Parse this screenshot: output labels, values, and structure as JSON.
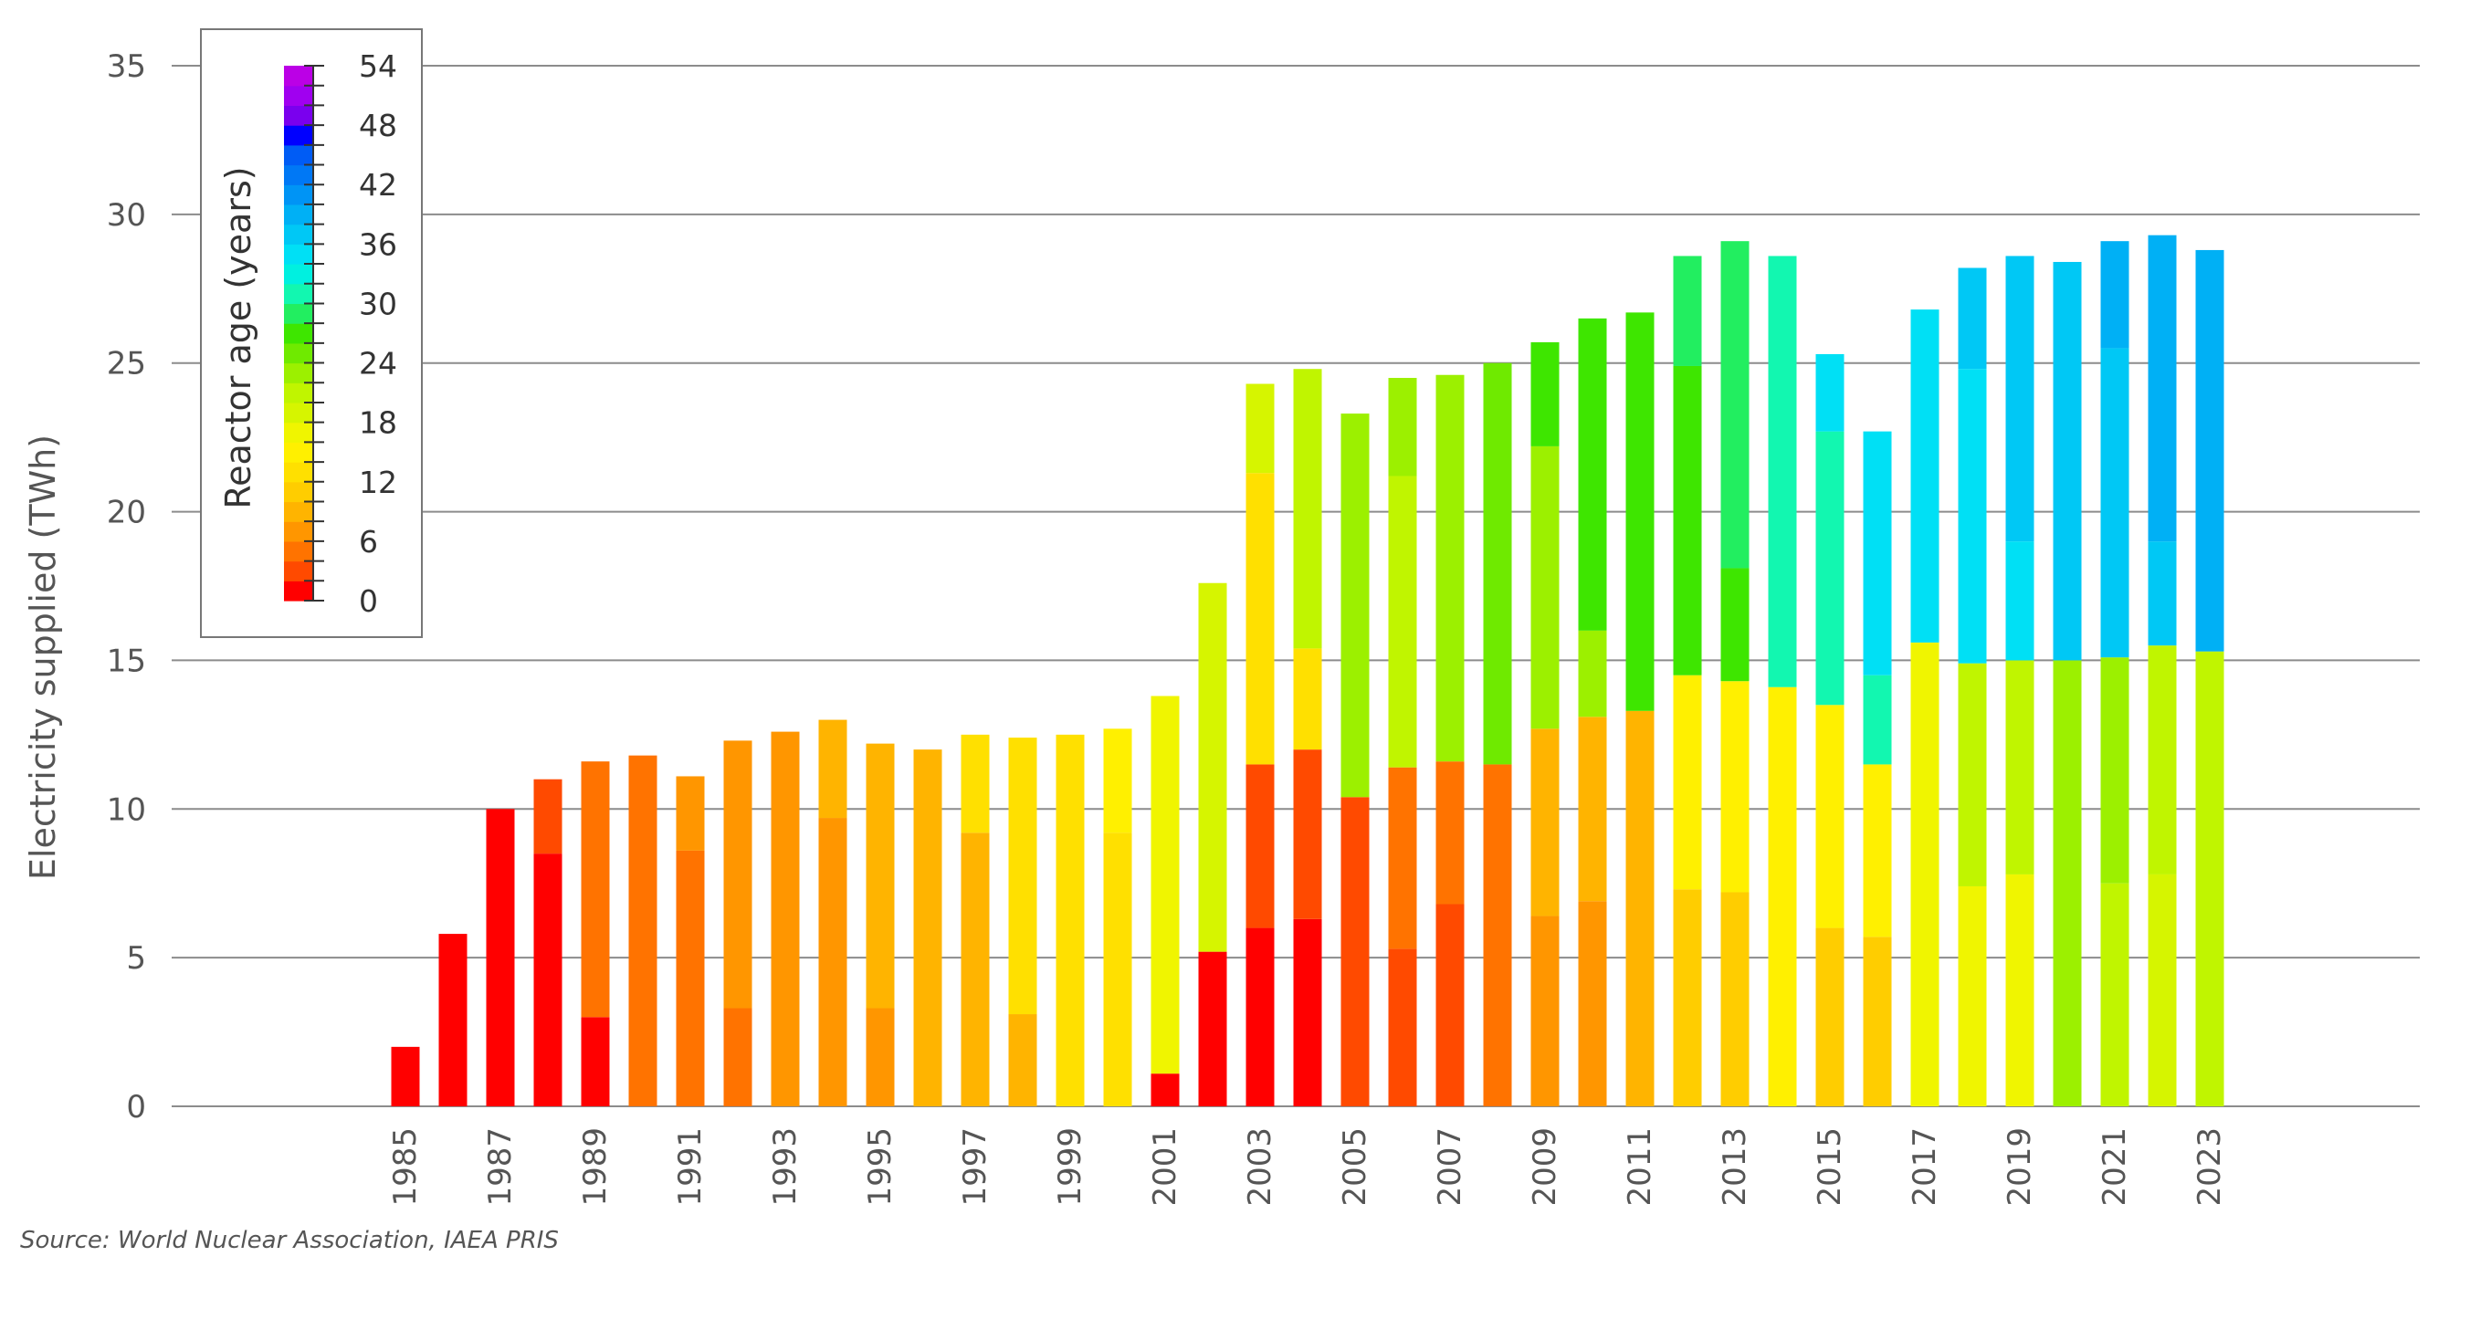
{
  "chart_data": {
    "type": "bar",
    "stacked": true,
    "ylabel": "Electricity supplied (TWh)",
    "ylim": [
      0,
      35
    ],
    "yticks": [
      0,
      5,
      10,
      15,
      20,
      25,
      30,
      35
    ],
    "xticks": [
      "1985",
      "1987",
      "1989",
      "1991",
      "1993",
      "1995",
      "1997",
      "1999",
      "2001",
      "2003",
      "2005",
      "2007",
      "2009",
      "2011",
      "2013",
      "2015",
      "2017",
      "2019",
      "2021",
      "2023"
    ],
    "grid": "horizontal",
    "legend": {
      "title": "Reactor age (years)",
      "placement": "top-left",
      "labels": [
        "54",
        "48",
        "42",
        "36",
        "30",
        "24",
        "18",
        "12",
        "6",
        "0"
      ],
      "colors": [
        "#ff0000",
        "#ff4a00",
        "#ff7300",
        "#ff9600",
        "#ffb400",
        "#ffcd00",
        "#ffe000",
        "#fff000",
        "#f0f500",
        "#d6f500",
        "#c0f500",
        "#9cf000",
        "#6fea00",
        "#3ee600",
        "#22ee60",
        "#12f7b0",
        "#00f0e0",
        "#00e0f5",
        "#00c8f5",
        "#00b0f5",
        "#0094f5",
        "#0078f5",
        "#005cf5",
        "#0000ff",
        "#7a00ee",
        "#a000f0",
        "#bb00e6"
      ]
    },
    "series_note": "Each year's bar is a stack of segments from bottom to top; each segment is [value in TWh, colour bin index 0-26] where bin index = floor(reactor age / 2).",
    "categories": [
      "1985",
      "1986",
      "1987",
      "1988",
      "1989",
      "1990",
      "1991",
      "1992",
      "1993",
      "1994",
      "1995",
      "1996",
      "1997",
      "1998",
      "1999",
      "2000",
      "2001",
      "2002",
      "2003",
      "2004",
      "2005",
      "2006",
      "2007",
      "2008",
      "2009",
      "2010",
      "2011",
      "2012",
      "2013",
      "2014",
      "2015",
      "2016",
      "2017",
      "2018",
      "2019",
      "2020",
      "2021",
      "2022",
      "2023"
    ],
    "stacks": [
      [
        [
          2.0,
          0
        ]
      ],
      [
        [
          5.8,
          0
        ]
      ],
      [
        [
          10.0,
          0
        ]
      ],
      [
        [
          8.5,
          0
        ],
        [
          2.5,
          1
        ]
      ],
      [
        [
          3.0,
          0
        ],
        [
          8.6,
          2
        ]
      ],
      [
        [
          11.8,
          2
        ]
      ],
      [
        [
          8.6,
          2
        ],
        [
          2.5,
          3
        ]
      ],
      [
        [
          3.3,
          2
        ],
        [
          9.0,
          3
        ]
      ],
      [
        [
          12.6,
          3
        ]
      ],
      [
        [
          9.7,
          3
        ],
        [
          3.3,
          4
        ]
      ],
      [
        [
          3.3,
          3
        ],
        [
          8.9,
          4
        ]
      ],
      [
        [
          12.0,
          4
        ]
      ],
      [
        [
          9.2,
          4
        ],
        [
          3.3,
          6
        ]
      ],
      [
        [
          3.1,
          4
        ],
        [
          9.3,
          6
        ]
      ],
      [
        [
          12.5,
          6
        ]
      ],
      [
        [
          9.2,
          6
        ],
        [
          3.5,
          7
        ]
      ],
      [
        [
          1.1,
          0
        ],
        [
          12.7,
          8
        ]
      ],
      [
        [
          5.2,
          0
        ],
        [
          12.4,
          9
        ]
      ],
      [
        [
          6.0,
          0
        ],
        [
          5.5,
          1
        ],
        [
          9.8,
          6
        ],
        [
          3.0,
          9
        ]
      ],
      [
        [
          6.3,
          0
        ],
        [
          5.7,
          1
        ],
        [
          3.4,
          6
        ],
        [
          9.4,
          10
        ]
      ],
      [
        [
          10.4,
          1
        ],
        [
          12.9,
          11
        ]
      ],
      [
        [
          5.3,
          1
        ],
        [
          6.1,
          2
        ],
        [
          9.8,
          10
        ],
        [
          3.3,
          11
        ]
      ],
      [
        [
          6.8,
          1
        ],
        [
          4.8,
          2
        ],
        [
          13.0,
          11
        ]
      ],
      [
        [
          11.5,
          2
        ],
        [
          13.5,
          12
        ]
      ],
      [
        [
          6.4,
          3
        ],
        [
          6.3,
          4
        ],
        [
          9.5,
          11
        ],
        [
          3.5,
          13
        ]
      ],
      [
        [
          6.9,
          3
        ],
        [
          6.2,
          4
        ],
        [
          2.9,
          11
        ],
        [
          10.5,
          13
        ]
      ],
      [
        [
          13.3,
          4
        ],
        [
          13.4,
          13
        ]
      ],
      [
        [
          7.3,
          5
        ],
        [
          7.2,
          7
        ],
        [
          10.4,
          13
        ],
        [
          3.7,
          14
        ]
      ],
      [
        [
          7.2,
          5
        ],
        [
          7.1,
          7
        ],
        [
          3.8,
          13
        ],
        [
          11.0,
          14
        ]
      ],
      [
        [
          14.1,
          7
        ],
        [
          14.5,
          15
        ]
      ],
      [
        [
          6.0,
          5
        ],
        [
          7.5,
          7
        ],
        [
          9.2,
          15
        ],
        [
          2.6,
          17
        ]
      ],
      [
        [
          5.7,
          5
        ],
        [
          5.8,
          7
        ],
        [
          3.0,
          15
        ],
        [
          8.2,
          17
        ]
      ],
      [
        [
          15.6,
          8
        ],
        [
          11.2,
          17
        ]
      ],
      [
        [
          7.4,
          8
        ],
        [
          7.5,
          10
        ],
        [
          9.9,
          17
        ],
        [
          3.4,
          18
        ]
      ],
      [
        [
          7.8,
          8
        ],
        [
          7.2,
          10
        ],
        [
          4.0,
          17
        ],
        [
          9.6,
          18
        ]
      ],
      [
        [
          15.0,
          11
        ],
        [
          13.4,
          18
        ]
      ],
      [
        [
          7.5,
          10
        ],
        [
          7.6,
          11
        ],
        [
          10.4,
          18
        ],
        [
          3.6,
          19
        ]
      ],
      [
        [
          7.8,
          9
        ],
        [
          7.7,
          10
        ],
        [
          3.5,
          18
        ],
        [
          10.3,
          19
        ]
      ],
      [
        [
          15.3,
          10
        ],
        [
          13.5,
          19
        ]
      ]
    ]
  },
  "source": "Source: World Nuclear Association, IAEA PRIS"
}
